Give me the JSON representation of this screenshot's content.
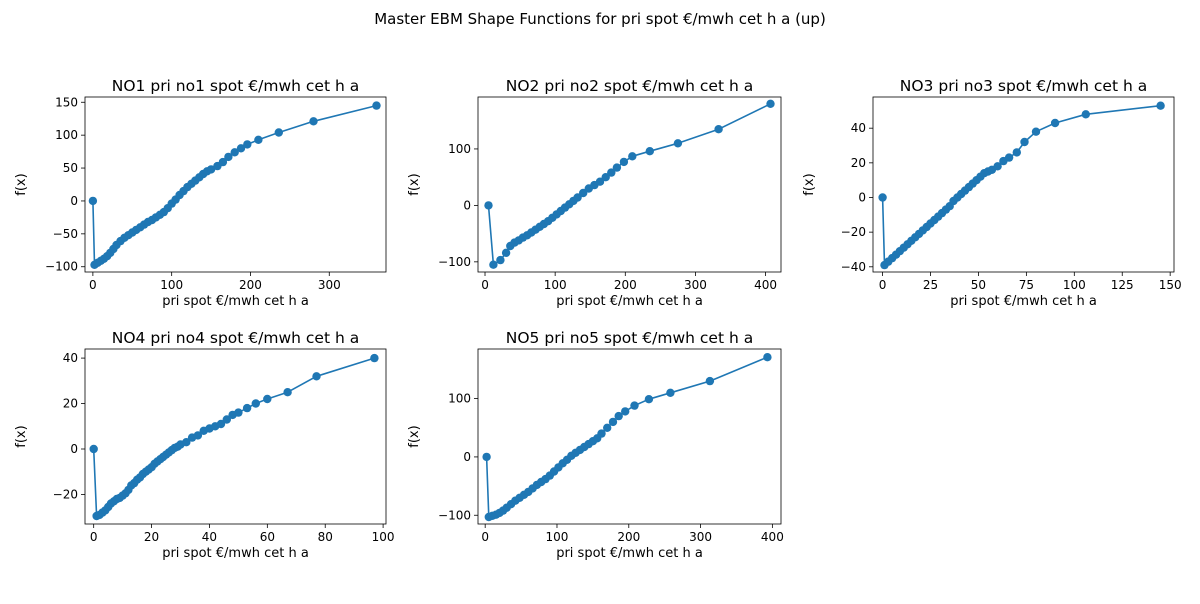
{
  "figure": {
    "suptitle": "Master EBM Shape Functions for pri  spot €/mwh cet h a (up)",
    "line_color": "#1f77b4"
  },
  "chart_data": [
    {
      "type": "line",
      "title": "NO1 pri no1 spot €/mwh cet h a",
      "xlabel": "pri  spot €/mwh cet h a",
      "ylabel": "f(x)",
      "xlim": [
        -10,
        372
      ],
      "ylim": [
        -108,
        158
      ],
      "xticks": [
        0,
        100,
        200,
        300
      ],
      "yticks": [
        -100,
        -50,
        0,
        50,
        100,
        150
      ],
      "series": [
        {
          "x": [
            0,
            2,
            6,
            10,
            14,
            18,
            22,
            26,
            30,
            35,
            40,
            45,
            50,
            55,
            60,
            65,
            70,
            75,
            80,
            85,
            90,
            95,
            100,
            105,
            110,
            115,
            120,
            125,
            130,
            135,
            140,
            145,
            150,
            158,
            165,
            172,
            180,
            188,
            196,
            210,
            236,
            280,
            360
          ],
          "y": [
            0,
            -97,
            -94,
            -91,
            -88,
            -84,
            -79,
            -73,
            -67,
            -61,
            -56,
            -52,
            -48,
            -44,
            -40,
            -36,
            -32,
            -29,
            -25,
            -21,
            -17,
            -11,
            -4,
            2,
            9,
            15,
            21,
            26,
            31,
            36,
            41,
            45,
            48,
            53,
            59,
            67,
            74,
            80,
            86,
            93,
            104,
            121,
            145
          ]
        }
      ]
    },
    {
      "type": "line",
      "title": "NO2 pri no2 spot €/mwh cet h a",
      "xlabel": "pri  spot €/mwh cet h a",
      "ylabel": "f(x)",
      "xlim": [
        -10,
        422
      ],
      "ylim": [
        -118,
        192
      ],
      "xticks": [
        0,
        100,
        200,
        300,
        400
      ],
      "yticks": [
        -100,
        0,
        100
      ],
      "series": [
        {
          "x": [
            5,
            12,
            22,
            30,
            36,
            42,
            48,
            54,
            60,
            66,
            72,
            78,
            84,
            90,
            96,
            102,
            108,
            114,
            120,
            126,
            132,
            140,
            148,
            156,
            164,
            172,
            180,
            188,
            198,
            210,
            235,
            275,
            333,
            407
          ],
          "y": [
            0,
            -105,
            -97,
            -84,
            -72,
            -66,
            -62,
            -57,
            -53,
            -48,
            -43,
            -38,
            -33,
            -28,
            -22,
            -16,
            -10,
            -4,
            2,
            8,
            14,
            22,
            30,
            36,
            42,
            50,
            58,
            67,
            77,
            87,
            96,
            110,
            135,
            180
          ]
        }
      ]
    },
    {
      "type": "line",
      "title": "NO3 pri no3 spot €/mwh cet h a",
      "xlabel": "pri  spot €/mwh cet h a",
      "ylabel": "f(x)",
      "xlim": [
        -5,
        152
      ],
      "ylim": [
        -43,
        58
      ],
      "xticks": [
        0,
        25,
        50,
        75,
        100,
        125,
        150
      ],
      "yticks": [
        -40,
        -20,
        0,
        20,
        40
      ],
      "series": [
        {
          "x": [
            0,
            1,
            3,
            5,
            7,
            9,
            11,
            13,
            15,
            17,
            19,
            21,
            23,
            25,
            27,
            29,
            31,
            33,
            35,
            37,
            39,
            41,
            43,
            45,
            47,
            49,
            51,
            53,
            55,
            57,
            60,
            63,
            66,
            70,
            74,
            80,
            90,
            106,
            145
          ],
          "y": [
            0,
            -39,
            -37,
            -35,
            -33,
            -31,
            -29,
            -27,
            -25,
            -23,
            -21,
            -19,
            -17,
            -15,
            -13,
            -11,
            -9,
            -7,
            -5,
            -2,
            0,
            2,
            4,
            6,
            8,
            10,
            12,
            14,
            15,
            16,
            18,
            21,
            23,
            26,
            32,
            38,
            43,
            48,
            53
          ]
        }
      ]
    },
    {
      "type": "line",
      "title": "NO4 pri no4 spot €/mwh cet h a",
      "xlabel": "pri  spot €/mwh cet h a",
      "ylabel": "f(x)",
      "xlim": [
        -3,
        101
      ],
      "ylim": [
        -33,
        44
      ],
      "xticks": [
        0,
        20,
        40,
        60,
        80,
        100
      ],
      "yticks": [
        -20,
        0,
        20,
        40
      ],
      "series": [
        {
          "x": [
            0,
            1,
            2,
            3,
            4,
            5,
            6,
            7,
            8,
            9,
            10,
            11,
            12,
            13,
            14,
            15,
            16,
            17,
            18,
            19,
            20,
            21,
            22,
            23,
            24,
            25,
            26,
            27,
            28,
            29,
            30,
            32,
            34,
            36,
            38,
            40,
            42,
            44,
            46,
            48,
            50,
            53,
            56,
            60,
            67,
            77,
            97
          ],
          "y": [
            0,
            -29.5,
            -29,
            -28,
            -27,
            -25.5,
            -24,
            -23,
            -22,
            -21.5,
            -20.5,
            -19.5,
            -18,
            -16,
            -15,
            -13.5,
            -12.5,
            -11,
            -10,
            -9,
            -8,
            -6.5,
            -5.5,
            -4.5,
            -3.5,
            -2.5,
            -1.5,
            -0.5,
            0.5,
            1,
            2,
            3,
            5,
            6,
            8,
            9,
            10,
            11,
            13,
            15,
            16,
            18,
            20,
            22,
            25,
            32,
            40
          ]
        }
      ]
    },
    {
      "type": "line",
      "title": "NO5 pri no5 spot €/mwh cet h a",
      "xlabel": "pri  spot €/mwh cet h a",
      "ylabel": "f(x)",
      "xlim": [
        -10,
        412
      ],
      "ylim": [
        -115,
        185
      ],
      "xticks": [
        0,
        100,
        200,
        300,
        400
      ],
      "yticks": [
        -100,
        0,
        100
      ],
      "series": [
        {
          "x": [
            2,
            5,
            10,
            15,
            20,
            25,
            30,
            36,
            42,
            48,
            54,
            60,
            66,
            72,
            78,
            84,
            90,
            96,
            102,
            108,
            114,
            120,
            126,
            132,
            138,
            144,
            150,
            156,
            162,
            170,
            178,
            186,
            195,
            208,
            228,
            258,
            313,
            393
          ],
          "y": [
            0,
            -103,
            -101,
            -99,
            -96,
            -92,
            -87,
            -81,
            -75,
            -70,
            -65,
            -60,
            -54,
            -48,
            -43,
            -38,
            -32,
            -25,
            -18,
            -11,
            -5,
            2,
            7,
            12,
            17,
            22,
            27,
            32,
            40,
            50,
            60,
            70,
            78,
            88,
            99,
            110,
            130,
            171
          ]
        }
      ]
    }
  ]
}
